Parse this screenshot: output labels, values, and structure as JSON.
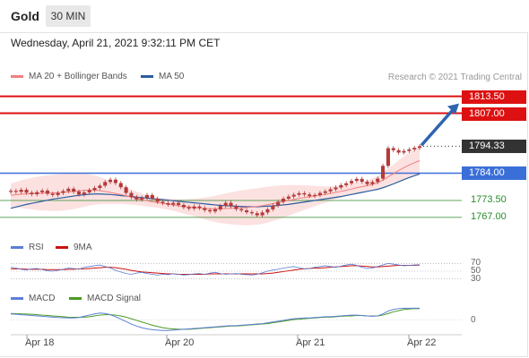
{
  "header": {
    "instrument": "Gold",
    "timeframe": "30 MIN"
  },
  "datetime": "Wednesday, April 21, 2021 9:32:11 PM CET",
  "credit": "Research © 2021 Trading Central",
  "legends": {
    "ma20": "MA 20 + Bollinger Bands",
    "ma50": "MA 50",
    "rsi": "RSI",
    "rsi_ma": "9MA",
    "macd": "MACD",
    "macd_signal": "MACD Signal"
  },
  "colors": {
    "resistance": "#dd1111",
    "support": "#3a6fd8",
    "support_green": "#2a8a2a",
    "ma20": "#f08080",
    "ma50": "#2b5c9e",
    "band_fill": "#fbdada",
    "candle": "#b33a3a",
    "arrow": "#2f64b1",
    "rsi": "#5b7fd6",
    "rsi_ma": "#cc1111",
    "macd": "#5b7fd6",
    "macd_signal": "#4a9a22"
  },
  "chart_data": {
    "type": "line",
    "title": "Gold",
    "timeframe": "30 MIN",
    "x_ticks": [
      "Apr 18",
      "Apr 20",
      "Apr 21",
      "Apr 22"
    ],
    "price_series": [
      {
        "name": "Price",
        "values": [
          1777.2,
          1776.8,
          1777.6,
          1776.5,
          1775.9,
          1776.7,
          1777.3,
          1776.1,
          1775.6,
          1776.4,
          1777.1,
          1778.0,
          1776.9,
          1775.8,
          1776.6,
          1777.5,
          1778.3,
          1779.2,
          1780.6,
          1781.5,
          1780.2,
          1778.6,
          1776.4,
          1774.8,
          1773.9,
          1774.5,
          1775.6,
          1774.2,
          1773.0,
          1772.5,
          1771.9,
          1772.6,
          1771.8,
          1770.9,
          1770.4,
          1771.2,
          1770.6,
          1769.8,
          1769.3,
          1770.1,
          1771.4,
          1772.6,
          1771.3,
          1770.2,
          1769.7,
          1769.0,
          1768.6,
          1767.8,
          1768.9,
          1770.1,
          1771.6,
          1773.0,
          1774.2,
          1775.0,
          1775.7,
          1776.3,
          1775.8,
          1775.2,
          1775.6,
          1776.4,
          1777.0,
          1777.8,
          1778.5,
          1779.4,
          1780.1,
          1781.0,
          1781.8,
          1780.7,
          1779.8,
          1780.6,
          1781.9,
          1786.8,
          1793.6,
          1792.8,
          1791.9,
          1792.5,
          1793.1,
          1793.7,
          1794.33
        ]
      },
      {
        "name": "MA 20",
        "values": [
          1775.5,
          1775.7,
          1775.9,
          1776.0,
          1776.1,
          1776.2,
          1776.3,
          1776.4,
          1776.4,
          1776.5,
          1776.6,
          1776.8,
          1777.0,
          1777.2,
          1777.4,
          1777.5,
          1777.5,
          1777.3,
          1777.0,
          1776.6,
          1776.2,
          1775.8,
          1775.3,
          1774.8,
          1774.3,
          1773.8,
          1773.4,
          1773.0,
          1772.7,
          1772.4,
          1772.1,
          1771.8,
          1771.5,
          1771.2,
          1771.0,
          1770.8,
          1770.6,
          1770.4,
          1770.3,
          1770.3,
          1770.3,
          1770.4,
          1770.5,
          1770.6,
          1770.7,
          1770.8,
          1771.0,
          1771.2,
          1771.5,
          1771.9,
          1772.3,
          1772.7,
          1773.1,
          1773.5,
          1773.9,
          1774.3,
          1774.6,
          1774.9,
          1775.2,
          1775.5,
          1775.8,
          1776.2,
          1776.6,
          1777.0,
          1777.4,
          1777.9,
          1778.4,
          1778.8,
          1779.2,
          1779.7,
          1780.3,
          1781.3,
          1782.6,
          1783.8,
          1785.0,
          1786.1,
          1787.1,
          1788.0,
          1788.8
        ]
      },
      {
        "name": "MA 50",
        "values": [
          1770.5,
          1771.0,
          1771.5,
          1772.0,
          1772.4,
          1772.8,
          1773.2,
          1773.6,
          1774.0,
          1774.3,
          1774.6,
          1774.9,
          1775.2,
          1775.5,
          1775.7,
          1775.9,
          1776.0,
          1776.0,
          1775.9,
          1775.8,
          1775.6,
          1775.4,
          1775.2,
          1775.0,
          1774.8,
          1774.6,
          1774.4,
          1774.2,
          1774.0,
          1773.8,
          1773.6,
          1773.4,
          1773.2,
          1773.0,
          1772.8,
          1772.6,
          1772.4,
          1772.2,
          1772.0,
          1771.8,
          1771.6,
          1771.5,
          1771.4,
          1771.3,
          1771.2,
          1771.1,
          1771.1,
          1771.1,
          1771.2,
          1771.3,
          1771.4,
          1771.6,
          1771.8,
          1772.0,
          1772.3,
          1772.6,
          1772.9,
          1773.2,
          1773.5,
          1773.8,
          1774.1,
          1774.4,
          1774.7,
          1775.0,
          1775.4,
          1775.8,
          1776.2,
          1776.6,
          1777.0,
          1777.4,
          1777.8,
          1778.4,
          1779.1,
          1779.9,
          1780.7,
          1781.5,
          1782.3,
          1783.0,
          1783.7
        ]
      }
    ],
    "levels": [
      {
        "value": 1813.5,
        "label": "1813.50",
        "kind": "resistance",
        "style": "badge"
      },
      {
        "value": 1807.0,
        "label": "1807.00",
        "kind": "resistance",
        "style": "badge"
      },
      {
        "value": 1794.33,
        "label": "1794.33",
        "kind": "last",
        "style": "badge"
      },
      {
        "value": 1784.0,
        "label": "1784.00",
        "kind": "pivot",
        "style": "badge"
      },
      {
        "value": 1773.5,
        "label": "1773.50",
        "kind": "support",
        "style": "text"
      },
      {
        "value": 1767.0,
        "label": "1767.00",
        "kind": "support",
        "style": "text"
      }
    ],
    "forecast_arrow": {
      "from": 1794.33,
      "to": 1813.5
    },
    "rsi": {
      "levels": [
        "70",
        "50",
        "30"
      ],
      "rsi_values": [
        60,
        58,
        55,
        53,
        56,
        57,
        54,
        51,
        50,
        52,
        55,
        58,
        57,
        55,
        60,
        62,
        64,
        66,
        62,
        58,
        52,
        48,
        44,
        42,
        45,
        47,
        44,
        42,
        40,
        42,
        41,
        43,
        42,
        40,
        41,
        43,
        44,
        42,
        45,
        47,
        44,
        42,
        43,
        44,
        42,
        41,
        40,
        42,
        46,
        50,
        53,
        55,
        58,
        60,
        62,
        59,
        56,
        57,
        60,
        62,
        64,
        62,
        60,
        63,
        66,
        68,
        65,
        60,
        57,
        58,
        62,
        66,
        70,
        68,
        66,
        64,
        65,
        66,
        67
      ],
      "ma_values": [
        56,
        56,
        56,
        55,
        55,
        55,
        55,
        54,
        54,
        54,
        54,
        55,
        55,
        56,
        56,
        57,
        58,
        59,
        60,
        60,
        59,
        57,
        55,
        52,
        50,
        48,
        47,
        46,
        45,
        44,
        43,
        43,
        42,
        42,
        42,
        42,
        42,
        42,
        43,
        43,
        43,
        43,
        43,
        43,
        43,
        43,
        43,
        43,
        43,
        44,
        45,
        47,
        49,
        51,
        53,
        55,
        56,
        57,
        58,
        58,
        59,
        60,
        61,
        62,
        63,
        64,
        64,
        63,
        62,
        61,
        61,
        62,
        63,
        64,
        65,
        65,
        65,
        65,
        66
      ]
    },
    "macd": {
      "zero_label": "0",
      "macd_values": [
        1.5,
        1.4,
        1.3,
        1.2,
        1.1,
        1.0,
        0.9,
        0.8,
        0.7,
        0.6,
        0.55,
        0.5,
        0.5,
        0.6,
        0.9,
        1.2,
        1.5,
        1.7,
        1.6,
        1.3,
        0.8,
        0.2,
        -0.4,
        -1.0,
        -1.5,
        -1.9,
        -2.2,
        -2.4,
        -2.5,
        -2.6,
        -2.6,
        -2.5,
        -2.4,
        -2.3,
        -2.2,
        -2.1,
        -2.0,
        -1.9,
        -1.8,
        -1.7,
        -1.6,
        -1.5,
        -1.4,
        -1.4,
        -1.3,
        -1.2,
        -1.1,
        -1.0,
        -0.9,
        -0.7,
        -0.5,
        -0.3,
        -0.1,
        0.1,
        0.3,
        0.4,
        0.5,
        0.5,
        0.6,
        0.7,
        0.8,
        0.8,
        0.9,
        1.0,
        1.1,
        1.2,
        1.2,
        1.1,
        1.0,
        0.9,
        1.0,
        1.5,
        2.2,
        2.6,
        2.8,
        2.9,
        2.9,
        2.9,
        2.9
      ],
      "signal_values": [
        1.6,
        1.55,
        1.5,
        1.45,
        1.4,
        1.3,
        1.2,
        1.1,
        1.0,
        0.9,
        0.8,
        0.7,
        0.65,
        0.65,
        0.7,
        0.8,
        1.0,
        1.2,
        1.3,
        1.3,
        1.2,
        1.0,
        0.7,
        0.3,
        -0.1,
        -0.5,
        -0.9,
        -1.3,
        -1.6,
        -1.9,
        -2.1,
        -2.2,
        -2.3,
        -2.3,
        -2.3,
        -2.2,
        -2.1,
        -2.0,
        -1.9,
        -1.8,
        -1.7,
        -1.6,
        -1.5,
        -1.5,
        -1.4,
        -1.3,
        -1.2,
        -1.1,
        -1.0,
        -0.9,
        -0.7,
        -0.5,
        -0.3,
        -0.1,
        0.1,
        0.2,
        0.3,
        0.4,
        0.5,
        0.6,
        0.7,
        0.7,
        0.8,
        0.9,
        1.0,
        1.0,
        1.1,
        1.1,
        1.0,
        1.0,
        1.0,
        1.2,
        1.6,
        2.0,
        2.3,
        2.6,
        2.7,
        2.8,
        2.8
      ]
    }
  }
}
